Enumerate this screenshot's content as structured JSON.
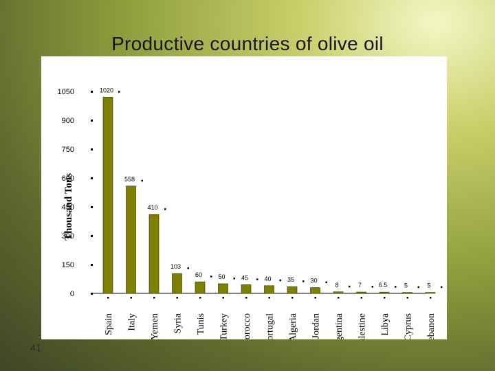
{
  "slide": {
    "title": "Productive countries of olive oil",
    "number": "41"
  },
  "colors": {
    "bar_fill": "#808000",
    "bar_stroke": "#2c2c00",
    "background_accent": "#c9cf6a"
  },
  "chart_data": {
    "type": "bar",
    "title": "Productive countries of olive oil",
    "xlabel": "",
    "ylabel": "Thousand Tons",
    "ylim": [
      0,
      1050
    ],
    "yticks": [
      0,
      150,
      300,
      450,
      600,
      750,
      900,
      1050
    ],
    "ytick_labels": [
      "0",
      "150",
      "300",
      "450",
      "600",
      "750",
      "900",
      "1050"
    ],
    "categories": [
      "Spain",
      "Italy",
      "Yemen",
      "Syria",
      "Tunis",
      "Turkey",
      "Morocco",
      "Portugal",
      "Algeria",
      "Jordan",
      "Argentina",
      "Palestine",
      "Libya",
      "Cyprus",
      "Lebanon"
    ],
    "values": [
      1020,
      558,
      410,
      103,
      60,
      50,
      45,
      40,
      35,
      30,
      8,
      7,
      6.5,
      5,
      5
    ],
    "value_labels": [
      "1020",
      "558",
      "410",
      "103",
      "60",
      "50",
      "45",
      "40",
      "35",
      "30",
      "8",
      "7",
      "6.5",
      "5",
      "5"
    ],
    "grid": false,
    "legend": "none"
  }
}
